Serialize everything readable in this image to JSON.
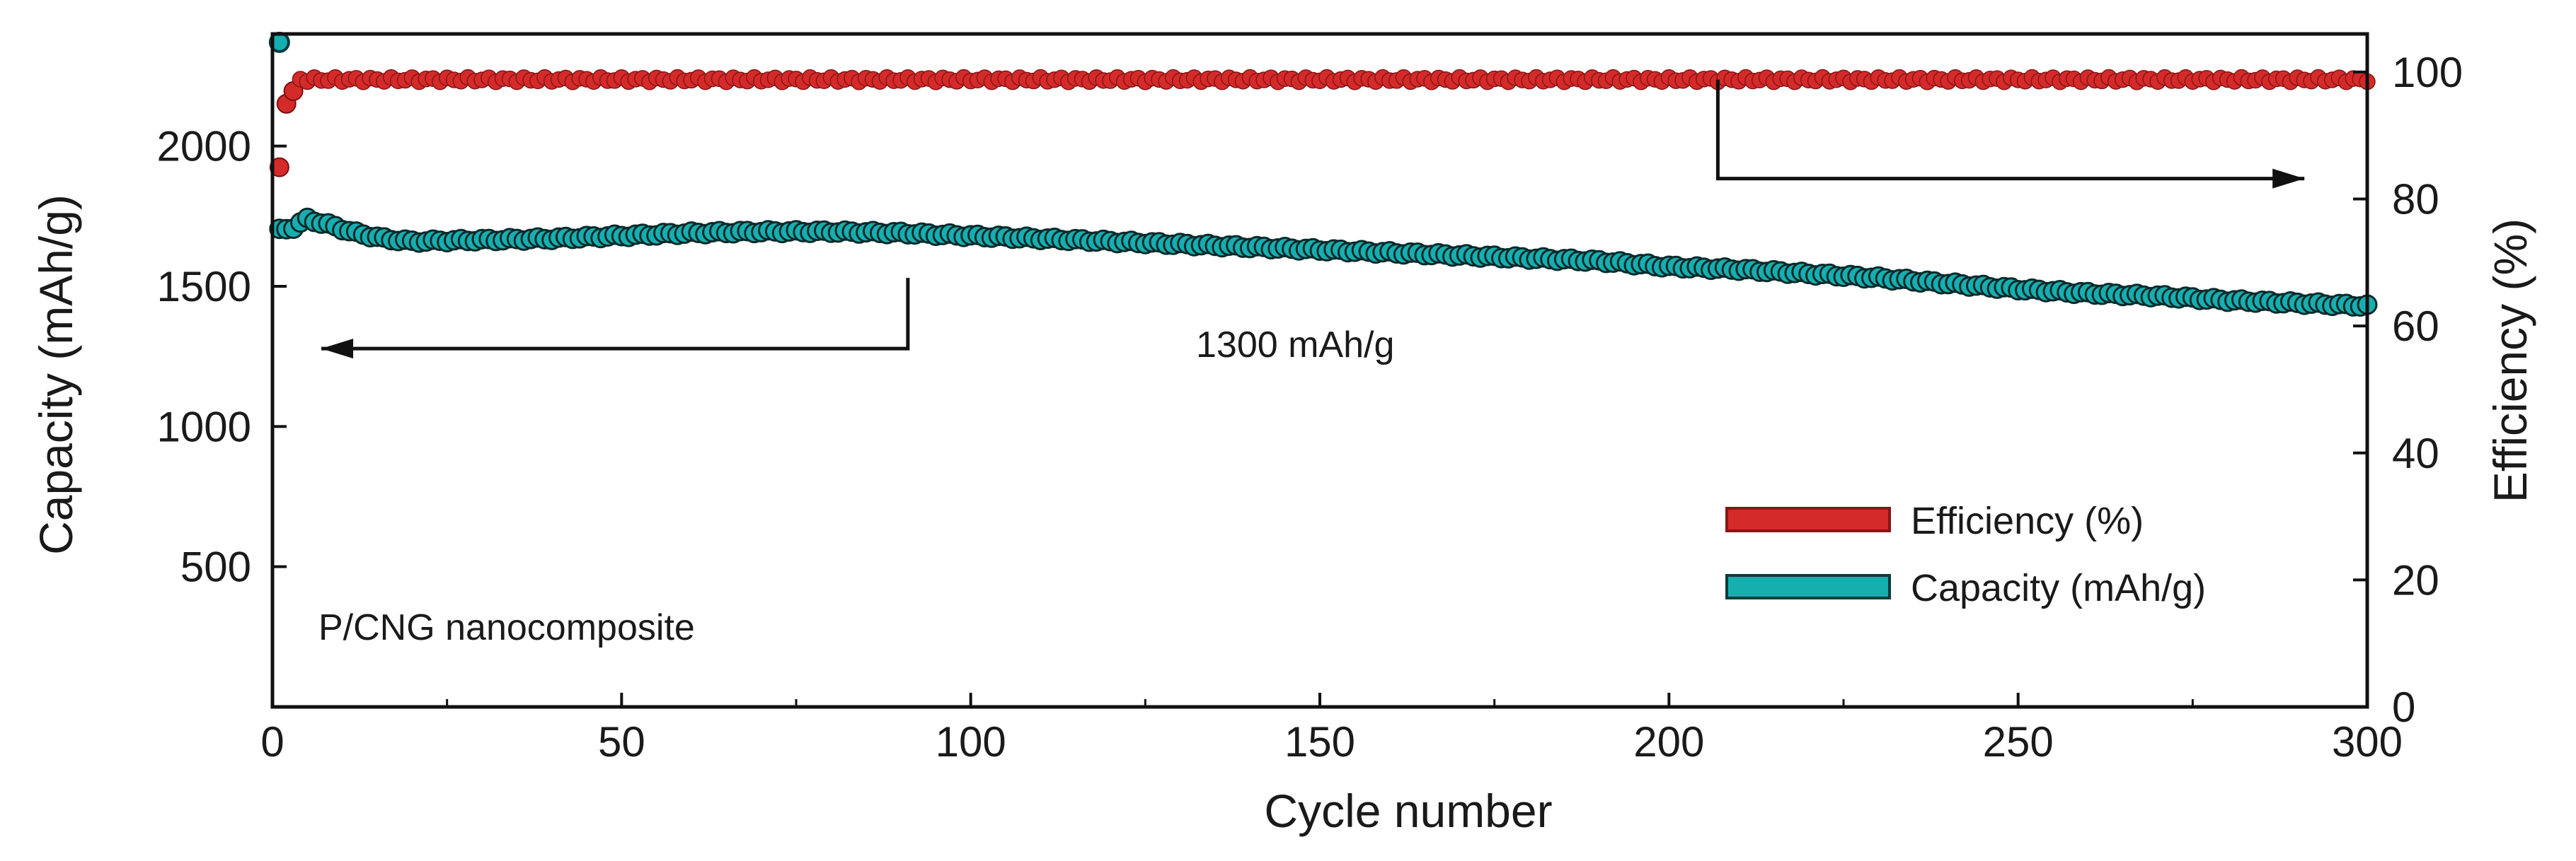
{
  "chart_data": {
    "type": "scatter",
    "xlabel": "Cycle number",
    "ylabel_left": "Capacity (mAh/g)",
    "ylabel_right": "Efficiency (%)",
    "xlim": [
      0,
      300
    ],
    "ylim_left": [
      0,
      2400
    ],
    "ylim_right": [
      0,
      106
    ],
    "x_ticks": [
      0,
      50,
      100,
      150,
      200,
      250,
      300
    ],
    "y_left_ticks": [
      500,
      1000,
      1500,
      2000
    ],
    "y_right_ticks": [
      0,
      20,
      40,
      60,
      80,
      100
    ],
    "grid": false,
    "legend_position": "bottom-right",
    "annotations": {
      "sample": "P/CNG nanocomposite",
      "capacity_note": "1300 mAh/g"
    },
    "series": [
      {
        "name": "Efficiency (%)",
        "axis": "right",
        "color": "#d42a2a",
        "initial_points": [
          [
            1,
            85
          ],
          [
            2,
            95
          ],
          [
            3,
            97
          ]
        ],
        "x": [
          4,
          300
        ],
        "y": [
          98.8,
          98.8
        ]
      },
      {
        "name": "Capacity (mAh/g)",
        "axis": "left",
        "color": "#17aeb0",
        "initial_points": [
          [
            1,
            2370
          ]
        ],
        "x": [
          1,
          3,
          5,
          8,
          12,
          16,
          20,
          30,
          40,
          50,
          60,
          70,
          80,
          90,
          100,
          110,
          120,
          130,
          140,
          150,
          160,
          170,
          180,
          190,
          200,
          210,
          220,
          230,
          240,
          250,
          260,
          270,
          280,
          290,
          300
        ],
        "y": [
          1700,
          1710,
          1740,
          1720,
          1690,
          1670,
          1660,
          1665,
          1670,
          1680,
          1690,
          1695,
          1695,
          1690,
          1680,
          1670,
          1660,
          1650,
          1640,
          1630,
          1620,
          1610,
          1600,
          1590,
          1570,
          1560,
          1545,
          1530,
          1510,
          1490,
          1475,
          1465,
          1450,
          1440,
          1430
        ]
      }
    ]
  }
}
